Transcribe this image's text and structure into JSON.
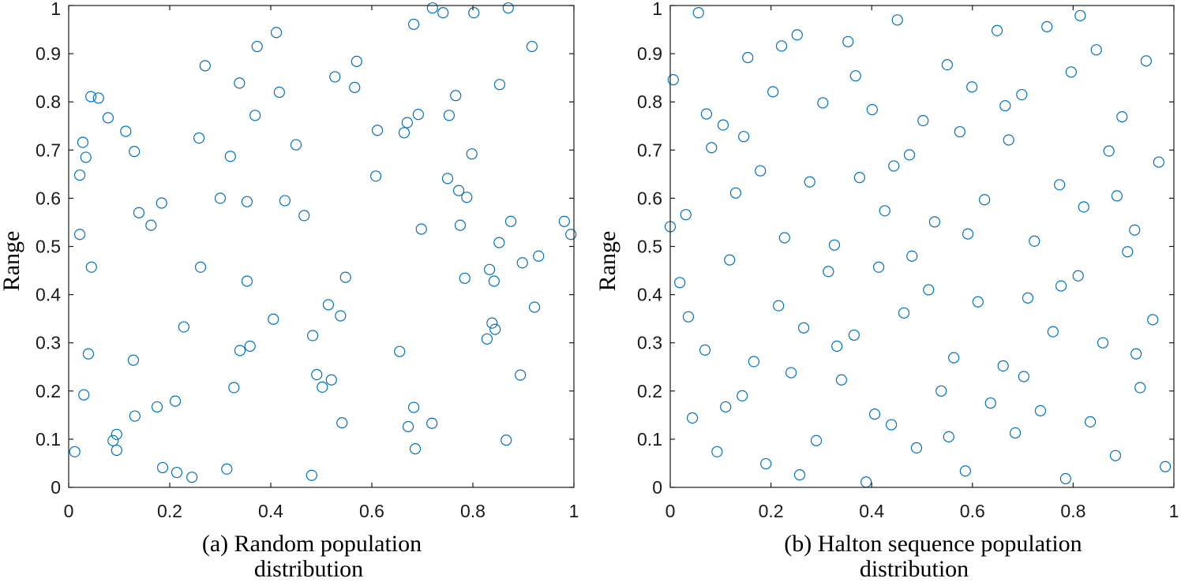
{
  "chart_data": [
    {
      "type": "scatter",
      "title_lines": [
        "(a) Random population",
        "distribution"
      ],
      "ylabel": "Range",
      "xlim": [
        0,
        1
      ],
      "ylim": [
        0,
        1
      ],
      "xticks": [
        0,
        0.2,
        0.4,
        0.6,
        0.8,
        1
      ],
      "xticklabels": [
        "0",
        "0.2",
        "0.4",
        "0.6",
        "0.8",
        "1"
      ],
      "yticks": [
        0,
        0.1,
        0.2,
        0.3,
        0.4,
        0.5,
        0.6,
        0.7,
        0.8,
        0.9,
        1
      ],
      "yticklabels": [
        "0",
        "0.1",
        "0.2",
        "0.3",
        "0.4",
        "0.5",
        "0.6",
        "0.7",
        "0.8",
        "0.9",
        "1"
      ],
      "grid": false,
      "marker_color": "#0072BD",
      "x": [
        0.012,
        0.022,
        0.022,
        0.028,
        0.034,
        0.03,
        0.039,
        0.044,
        0.045,
        0.059,
        0.078,
        0.088,
        0.095,
        0.095,
        0.113,
        0.128,
        0.13,
        0.131,
        0.139,
        0.163,
        0.175,
        0.184,
        0.186,
        0.211,
        0.214,
        0.228,
        0.244,
        0.258,
        0.261,
        0.27,
        0.3,
        0.313,
        0.32,
        0.327,
        0.338,
        0.339,
        0.353,
        0.353,
        0.359,
        0.369,
        0.373,
        0.405,
        0.411,
        0.417,
        0.428,
        0.45,
        0.466,
        0.481,
        0.483,
        0.491,
        0.502,
        0.514,
        0.52,
        0.527,
        0.538,
        0.541,
        0.548,
        0.566,
        0.57,
        0.608,
        0.611,
        0.655,
        0.664,
        0.67,
        0.672,
        0.683,
        0.683,
        0.686,
        0.692,
        0.698,
        0.719,
        0.72,
        0.741,
        0.75,
        0.753,
        0.766,
        0.772,
        0.775,
        0.784,
        0.788,
        0.798,
        0.802,
        0.828,
        0.833,
        0.838,
        0.842,
        0.844,
        0.852,
        0.853,
        0.866,
        0.87,
        0.875,
        0.894,
        0.898,
        0.917,
        0.922,
        0.93,
        0.981,
        0.994
      ],
      "y": [
        0.074,
        0.648,
        0.525,
        0.716,
        0.685,
        0.192,
        0.277,
        0.811,
        0.457,
        0.808,
        0.767,
        0.097,
        0.11,
        0.077,
        0.739,
        0.264,
        0.697,
        0.148,
        0.57,
        0.544,
        0.167,
        0.59,
        0.041,
        0.179,
        0.031,
        0.333,
        0.021,
        0.725,
        0.457,
        0.875,
        0.6,
        0.038,
        0.687,
        0.207,
        0.839,
        0.284,
        0.593,
        0.428,
        0.293,
        0.772,
        0.915,
        0.349,
        0.944,
        0.82,
        0.595,
        0.711,
        0.564,
        0.025,
        0.315,
        0.234,
        0.208,
        0.379,
        0.223,
        0.852,
        0.356,
        0.134,
        0.436,
        0.83,
        0.884,
        0.646,
        0.741,
        0.282,
        0.736,
        0.757,
        0.126,
        0.961,
        0.166,
        0.08,
        0.774,
        0.536,
        0.133,
        0.995,
        0.985,
        0.641,
        0.772,
        0.813,
        0.616,
        0.544,
        0.434,
        0.602,
        0.692,
        0.985,
        0.308,
        0.452,
        0.341,
        0.428,
        0.328,
        0.508,
        0.836,
        0.098,
        0.995,
        0.552,
        0.233,
        0.466,
        0.915,
        0.374,
        0.48,
        0.552,
        0.525
      ]
    },
    {
      "type": "scatter",
      "title_lines": [
        "(b) Halton sequence population",
        "distribution"
      ],
      "ylabel": "Range",
      "xlim": [
        0,
        1
      ],
      "ylim": [
        0,
        1
      ],
      "xticks": [
        0,
        0.2,
        0.4,
        0.6,
        0.8,
        1
      ],
      "xticklabels": [
        "0",
        "0.2",
        "0.4",
        "0.6",
        "0.8",
        "1"
      ],
      "yticks": [
        0,
        0.1,
        0.2,
        0.3,
        0.4,
        0.5,
        0.6,
        0.7,
        0.8,
        0.9,
        1
      ],
      "yticklabels": [
        "0",
        "0.1",
        "0.2",
        "0.3",
        "0.4",
        "0.5",
        "0.6",
        "0.7",
        "0.8",
        "0.9",
        "1"
      ],
      "grid": false,
      "marker_color": "#0072BD",
      "x": [
        0.0,
        0.006,
        0.019,
        0.031,
        0.036,
        0.044,
        0.056,
        0.069,
        0.072,
        0.082,
        0.093,
        0.105,
        0.11,
        0.118,
        0.13,
        0.143,
        0.146,
        0.154,
        0.166,
        0.179,
        0.19,
        0.204,
        0.215,
        0.221,
        0.227,
        0.24,
        0.252,
        0.257,
        0.265,
        0.277,
        0.29,
        0.303,
        0.314,
        0.326,
        0.331,
        0.34,
        0.353,
        0.365,
        0.368,
        0.376,
        0.389,
        0.401,
        0.406,
        0.414,
        0.426,
        0.439,
        0.444,
        0.451,
        0.464,
        0.475,
        0.48,
        0.489,
        0.502,
        0.513,
        0.525,
        0.538,
        0.55,
        0.553,
        0.563,
        0.575,
        0.586,
        0.591,
        0.599,
        0.611,
        0.624,
        0.636,
        0.649,
        0.661,
        0.665,
        0.672,
        0.685,
        0.698,
        0.702,
        0.71,
        0.723,
        0.735,
        0.748,
        0.76,
        0.773,
        0.776,
        0.785,
        0.796,
        0.81,
        0.814,
        0.821,
        0.834,
        0.846,
        0.859,
        0.871,
        0.884,
        0.887,
        0.897,
        0.908,
        0.922,
        0.925,
        0.933,
        0.945,
        0.958,
        0.97,
        0.983
      ],
      "y": [
        0.541,
        0.846,
        0.425,
        0.566,
        0.354,
        0.144,
        0.985,
        0.285,
        0.775,
        0.705,
        0.074,
        0.752,
        0.167,
        0.472,
        0.611,
        0.19,
        0.728,
        0.892,
        0.261,
        0.657,
        0.049,
        0.821,
        0.377,
        0.916,
        0.518,
        0.238,
        0.939,
        0.026,
        0.331,
        0.634,
        0.097,
        0.798,
        0.448,
        0.503,
        0.293,
        0.223,
        0.925,
        0.316,
        0.854,
        0.643,
        0.011,
        0.784,
        0.152,
        0.457,
        0.574,
        0.13,
        0.667,
        0.97,
        0.362,
        0.69,
        0.48,
        0.082,
        0.761,
        0.41,
        0.551,
        0.2,
        0.877,
        0.105,
        0.269,
        0.738,
        0.034,
        0.526,
        0.831,
        0.385,
        0.597,
        0.175,
        0.948,
        0.252,
        0.792,
        0.721,
        0.113,
        0.815,
        0.23,
        0.393,
        0.511,
        0.159,
        0.956,
        0.323,
        0.628,
        0.418,
        0.018,
        0.862,
        0.439,
        0.979,
        0.582,
        0.136,
        0.908,
        0.3,
        0.698,
        0.066,
        0.605,
        0.769,
        0.489,
        0.534,
        0.277,
        0.207,
        0.885,
        0.348,
        0.675,
        0.043
      ]
    }
  ]
}
